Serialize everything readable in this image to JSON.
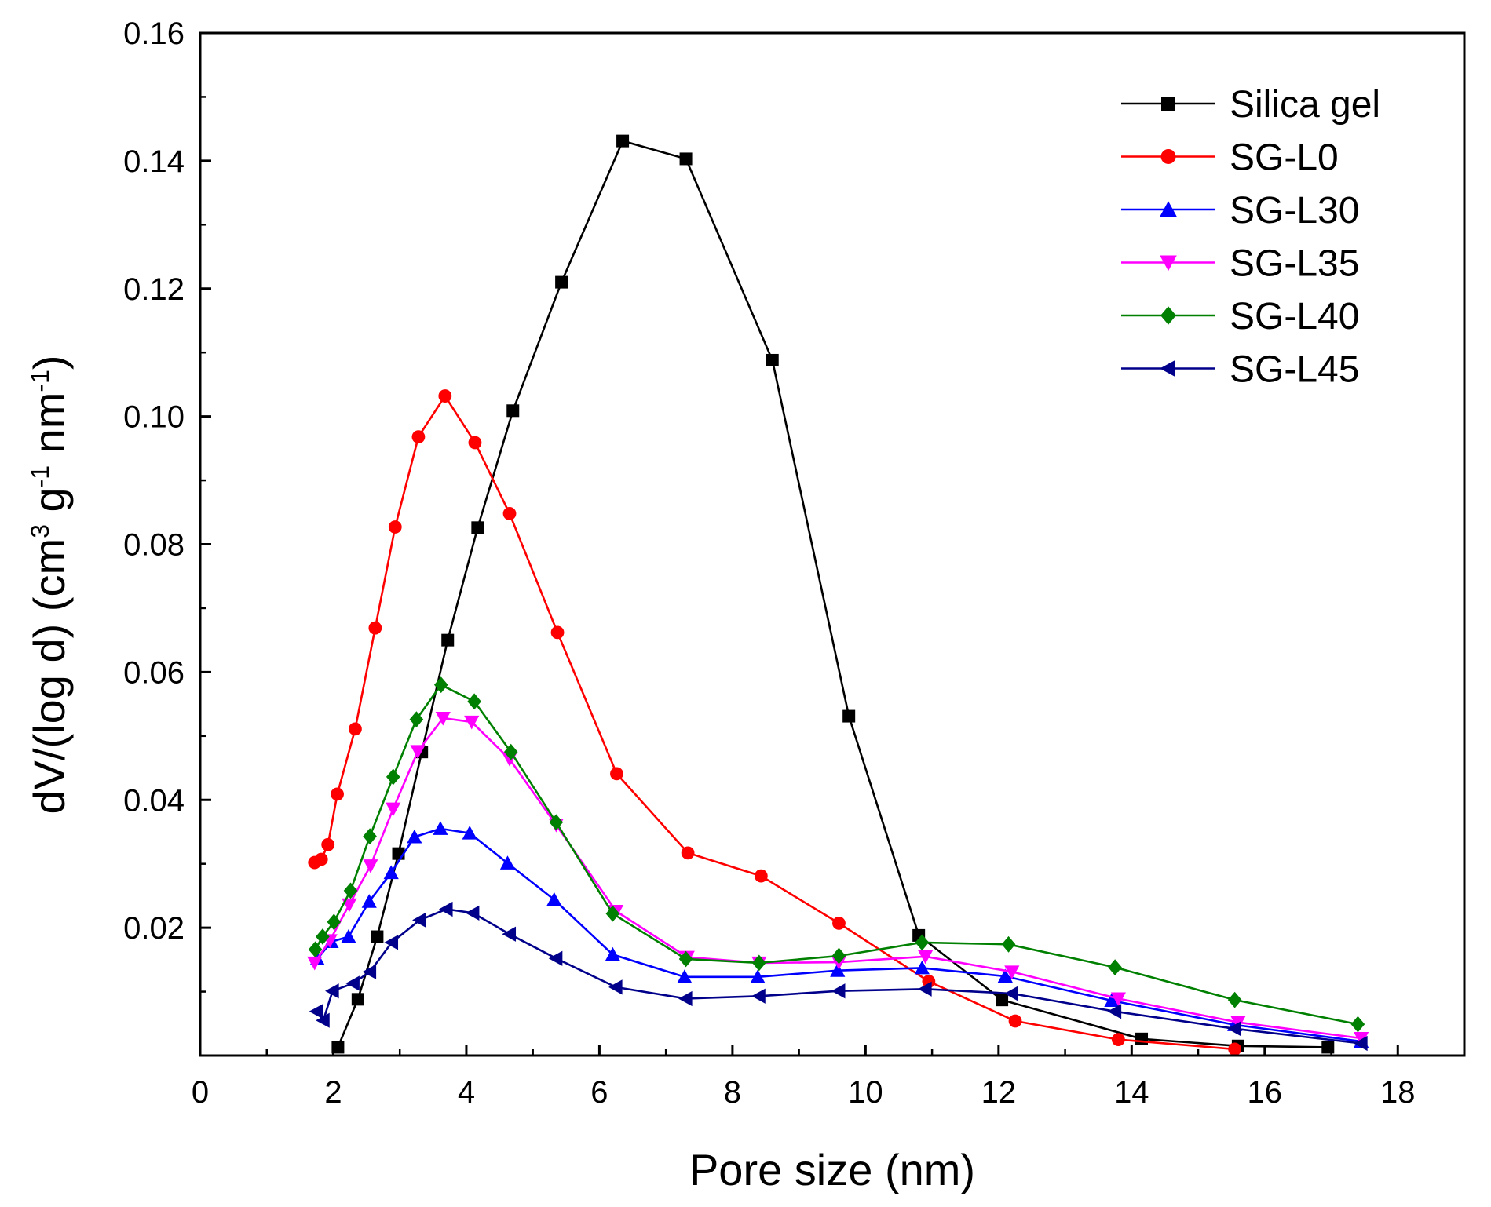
{
  "chart_data": {
    "type": "line",
    "title": "",
    "xlabel": "Pore size (nm)",
    "ylabel": {
      "p1": "dV/(log d) (cm",
      "s1": "3",
      "p2": " g",
      "s2": "-1",
      "p3": " nm",
      "s3": "-1",
      "p4": ")"
    },
    "xlim": [
      0,
      19
    ],
    "ylim": [
      0,
      0.16
    ],
    "xticks": [
      0,
      2,
      4,
      6,
      8,
      10,
      12,
      14,
      16,
      18
    ],
    "xtick_labels": [
      "0",
      "2",
      "4",
      "6",
      "8",
      "10",
      "12",
      "14",
      "16",
      "18"
    ],
    "yticks": [
      0.02,
      0.04,
      0.06,
      0.08,
      0.1,
      0.12,
      0.14,
      0.16
    ],
    "ytick_labels": [
      "0.02",
      "0.04",
      "0.06",
      "0.08",
      "0.10",
      "0.12",
      "0.14",
      "0.16"
    ],
    "grid": false,
    "legend_position": "top-right",
    "series": [
      {
        "name": "Silica gel",
        "color": "#000000",
        "marker": "square",
        "x": [
          2.07,
          2.37,
          2.66,
          2.98,
          3.33,
          3.72,
          4.17,
          4.7,
          5.43,
          6.35,
          7.3,
          8.6,
          9.75,
          10.8,
          12.05,
          14.15,
          15.6,
          16.95
        ],
        "y": [
          0.0013,
          0.0088,
          0.0186,
          0.0316,
          0.0475,
          0.065,
          0.0826,
          0.1009,
          0.121,
          0.1431,
          0.1403,
          0.1088,
          0.0531,
          0.0188,
          0.0087,
          0.0026,
          0.0015,
          0.0013
        ]
      },
      {
        "name": "SG-L0",
        "color": "#ff0000",
        "marker": "circle",
        "x": [
          1.72,
          1.82,
          1.92,
          2.06,
          2.33,
          2.63,
          2.93,
          3.28,
          3.68,
          4.13,
          4.65,
          5.37,
          6.26,
          7.33,
          8.43,
          9.6,
          10.95,
          12.25,
          13.8,
          15.55
        ],
        "y": [
          0.0302,
          0.0307,
          0.033,
          0.0409,
          0.0511,
          0.0669,
          0.0827,
          0.0968,
          0.1032,
          0.0959,
          0.0848,
          0.0662,
          0.0441,
          0.0317,
          0.0281,
          0.0207,
          0.0116,
          0.0054,
          0.0025,
          0.001
        ]
      },
      {
        "name": "SG-L30",
        "color": "#0000ff",
        "marker": "triangle-up",
        "x": [
          1.76,
          1.97,
          2.23,
          2.54,
          2.87,
          3.22,
          3.61,
          4.05,
          4.62,
          5.32,
          6.2,
          7.28,
          8.38,
          9.58,
          10.85,
          12.1,
          13.7,
          15.55,
          17.45
        ],
        "y": [
          0.0151,
          0.0178,
          0.0186,
          0.0241,
          0.0286,
          0.0342,
          0.0355,
          0.0348,
          0.0301,
          0.0244,
          0.0158,
          0.0123,
          0.0123,
          0.0133,
          0.0137,
          0.0124,
          0.0086,
          0.0048,
          0.0022
        ]
      },
      {
        "name": "SG-L35",
        "color": "#ff00ff",
        "marker": "triangle-down",
        "x": [
          1.72,
          1.95,
          2.24,
          2.56,
          2.9,
          3.27,
          3.65,
          4.08,
          4.65,
          5.35,
          6.25,
          7.32,
          8.4,
          9.6,
          10.9,
          12.2,
          13.8,
          15.6,
          17.45
        ],
        "y": [
          0.0145,
          0.018,
          0.0236,
          0.0297,
          0.0386,
          0.0476,
          0.0528,
          0.0522,
          0.0464,
          0.0361,
          0.0226,
          0.0154,
          0.0145,
          0.0146,
          0.0155,
          0.0131,
          0.0089,
          0.0052,
          0.0027
        ]
      },
      {
        "name": "SG-L40",
        "color": "#008000",
        "marker": "diamond",
        "x": [
          1.73,
          1.84,
          2.01,
          2.26,
          2.55,
          2.9,
          3.25,
          3.62,
          4.12,
          4.67,
          5.35,
          6.2,
          7.3,
          8.4,
          9.6,
          10.85,
          12.15,
          13.75,
          15.55,
          17.4
        ],
        "y": [
          0.0166,
          0.0186,
          0.0209,
          0.0258,
          0.0343,
          0.0436,
          0.0526,
          0.058,
          0.0554,
          0.0475,
          0.0365,
          0.0222,
          0.0151,
          0.0145,
          0.0156,
          0.0177,
          0.0174,
          0.0138,
          0.0087,
          0.0049
        ]
      },
      {
        "name": "SG-L45",
        "color": "#00008b",
        "marker": "triangle-left",
        "x": [
          1.75,
          1.85,
          1.99,
          2.3,
          2.55,
          2.88,
          3.3,
          3.7,
          4.1,
          4.65,
          5.35,
          6.25,
          7.3,
          8.4,
          9.6,
          10.9,
          12.2,
          13.75,
          15.55,
          17.45
        ],
        "y": [
          0.0069,
          0.0055,
          0.0101,
          0.0113,
          0.0131,
          0.0177,
          0.0212,
          0.0229,
          0.0223,
          0.019,
          0.0152,
          0.0107,
          0.0089,
          0.0093,
          0.0101,
          0.0104,
          0.0097,
          0.0069,
          0.0042,
          0.0019
        ]
      }
    ]
  }
}
